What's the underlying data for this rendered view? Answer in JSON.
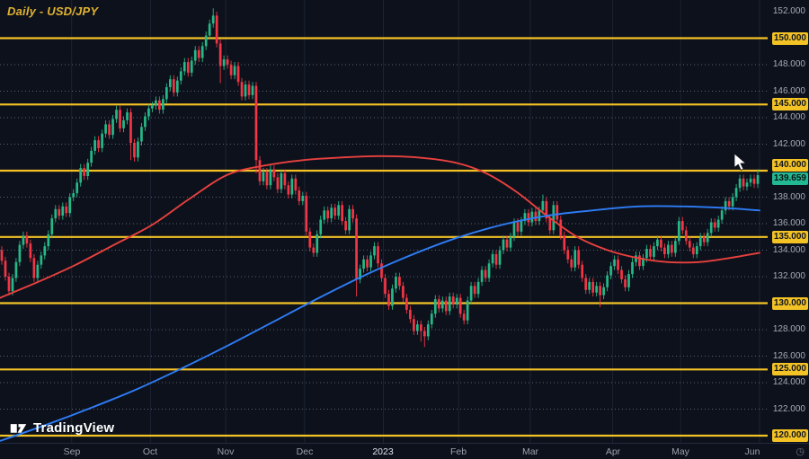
{
  "header": {
    "title": "Daily - USD/JPY"
  },
  "watermark": {
    "brand": "TradingView"
  },
  "colors": {
    "background": "#0d111c",
    "grid_vertical": "#1c2334",
    "dotted_line": "#9aa3b5",
    "level_line": "#f3c225",
    "level_chip_text": "#14171f",
    "candle_up": "#26b887",
    "candle_down": "#f23645",
    "ma_red": "#e8413e",
    "ma_blue": "#2e7df7",
    "tick_text": "#a6abb8",
    "month_text": "#9aa0ad",
    "month_text_emphasis": "#dfe3ec",
    "title_text": "#e0b231",
    "last_price_bg": "#23b894"
  },
  "y_axis": {
    "last_price_label": "139.659",
    "last_price_value": 139.659,
    "ticks": [
      {
        "v": 152,
        "label": "152.000",
        "level": false
      },
      {
        "v": 150,
        "label": "150.000",
        "level": true
      },
      {
        "v": 148,
        "label": "148.000",
        "level": false
      },
      {
        "v": 146,
        "label": "146.000",
        "level": false
      },
      {
        "v": 145,
        "label": "145.000",
        "level": true
      },
      {
        "v": 144,
        "label": "144.000",
        "level": false
      },
      {
        "v": 142,
        "label": "142.000",
        "level": false
      },
      {
        "v": 140,
        "label": "140.000",
        "level": true,
        "dy": -6
      },
      {
        "v": 138,
        "label": "138.000",
        "level": false
      },
      {
        "v": 136,
        "label": "136.000",
        "level": false
      },
      {
        "v": 135,
        "label": "135.000",
        "level": true
      },
      {
        "v": 134,
        "label": "134.000",
        "level": false
      },
      {
        "v": 132,
        "label": "132.000",
        "level": false
      },
      {
        "v": 130,
        "label": "130.000",
        "level": true
      },
      {
        "v": 128,
        "label": "128.000",
        "level": false
      },
      {
        "v": 126,
        "label": "126.000",
        "level": false
      },
      {
        "v": 125,
        "label": "125.000",
        "level": true
      },
      {
        "v": 124,
        "label": "124.000",
        "level": false
      },
      {
        "v": 122,
        "label": "122.000",
        "level": false
      },
      {
        "v": 120,
        "label": "120.000",
        "level": true
      }
    ]
  },
  "x_axis": {
    "months": [
      {
        "label": "Sep",
        "i": 20,
        "em": false
      },
      {
        "label": "Oct",
        "i": 42,
        "em": false
      },
      {
        "label": "Nov",
        "i": 63,
        "em": false
      },
      {
        "label": "Dec",
        "i": 85,
        "em": false
      },
      {
        "label": "2023",
        "i": 107,
        "em": true
      },
      {
        "label": "Feb",
        "i": 128,
        "em": false
      },
      {
        "label": "Mar",
        "i": 148,
        "em": false
      },
      {
        "label": "Apr",
        "i": 171,
        "em": false
      },
      {
        "label": "May",
        "i": 190,
        "em": false
      },
      {
        "label": "Jun",
        "i": 212,
        "em": false
      }
    ]
  },
  "chart_data": {
    "type": "candlestick",
    "title": "Daily - USD/JPY",
    "symbol": "USD/JPY",
    "timeframe": "Daily",
    "ylim": [
      119.4,
      152.9
    ],
    "x_range": [
      "Aug 2022",
      "Jun 2023"
    ],
    "grid": "dotted horizontal at even price levels, vertical at month starts",
    "key_levels": [
      120,
      125,
      130,
      135,
      140,
      145,
      150
    ],
    "dotted_levels": [
      122,
      124,
      126,
      128,
      132,
      134,
      136,
      138,
      142,
      144,
      146,
      148
    ],
    "last_close": 139.659,
    "first_open": 134.0,
    "default_wick": 0.3,
    "closes": [
      133.2,
      132.0,
      130.9,
      131.9,
      133.1,
      134.4,
      135.1,
      134.5,
      133.4,
      131.9,
      132.9,
      133.6,
      134.3,
      135.2,
      136.4,
      137.1,
      136.6,
      137.3,
      136.8,
      138.0,
      138.3,
      139.1,
      140.2,
      139.6,
      140.6,
      141.5,
      142.3,
      141.7,
      142.8,
      143.5,
      142.7,
      143.9,
      144.6,
      143.2,
      143.8,
      144.4,
      142.1,
      141.0,
      142.2,
      143.3,
      144.1,
      144.7,
      144.9,
      145.3,
      144.6,
      145.4,
      146.3,
      146.9,
      145.9,
      146.8,
      147.5,
      148.2,
      147.4,
      148.3,
      149.1,
      148.5,
      149.4,
      150.2,
      151.1,
      151.7,
      149.6,
      147.9,
      148.4,
      148.0,
      147.2,
      147.9,
      146.7,
      145.6,
      146.5,
      145.7,
      146.4,
      140.8,
      139.2,
      139.9,
      138.9,
      140.1,
      139.5,
      138.6,
      139.8,
      138.9,
      138.2,
      139.4,
      138.5,
      137.7,
      138.1,
      135.4,
      134.2,
      133.8,
      135.2,
      136.3,
      137.0,
      136.4,
      137.2,
      136.6,
      137.4,
      136.2,
      135.5,
      137.1,
      136.4,
      131.8,
      132.6,
      133.3,
      132.7,
      133.6,
      134.3,
      133.0,
      131.9,
      130.7,
      129.8,
      131.1,
      132.0,
      131.3,
      130.4,
      129.5,
      128.8,
      127.9,
      128.4,
      127.9,
      127.5,
      128.4,
      129.2,
      130.3,
      129.6,
      130.2,
      129.4,
      130.5,
      129.9,
      130.4,
      129.2,
      128.7,
      130.2,
      131.3,
      130.7,
      131.6,
      132.5,
      131.9,
      133.0,
      133.7,
      132.9,
      134.0,
      134.8,
      134.2,
      135.0,
      136.1,
      135.4,
      136.2,
      136.8,
      136.1,
      136.9,
      136.2,
      137.0,
      137.7,
      136.4,
      135.5,
      137.4,
      136.3,
      135.1,
      134.0,
      133.3,
      132.7,
      134.0,
      132.9,
      131.9,
      131.0,
      131.6,
      130.8,
      131.3,
      130.6,
      131.2,
      132.1,
      132.8,
      133.3,
      132.5,
      131.8,
      131.2,
      132.2,
      133.1,
      133.6,
      132.8,
      133.4,
      134.1,
      133.5,
      134.3,
      134.8,
      134.2,
      133.7,
      134.4,
      133.8,
      134.7,
      136.2,
      135.5,
      134.7,
      134.2,
      133.7,
      134.3,
      135.0,
      134.6,
      135.3,
      136.1,
      135.7,
      136.3,
      137.0,
      137.7,
      137.3,
      138.0,
      138.7,
      139.4,
      138.8,
      139.1,
      139.4,
      139.0,
      139.659
    ],
    "wick_overrides": {
      "36": [
        0,
        1.0
      ],
      "59": [
        0.25,
        0
      ],
      "61": [
        0,
        1.0
      ],
      "71": [
        0,
        0.7
      ],
      "99": [
        0,
        1.0
      ],
      "117": [
        0,
        0.5
      ],
      "118": [
        0,
        0.5
      ],
      "151": [
        0.2,
        0
      ],
      "167": [
        0,
        0.6
      ],
      "211": [
        0.15,
        0
      ]
    },
    "moving_averages": [
      {
        "name": "ma-red",
        "color_key": "ma_red",
        "points": [
          [
            0,
            130.4
          ],
          [
            0.05,
            131.6
          ],
          [
            0.1,
            132.9
          ],
          [
            0.15,
            134.4
          ],
          [
            0.2,
            135.9
          ],
          [
            0.25,
            137.9
          ],
          [
            0.3,
            139.7
          ],
          [
            0.35,
            140.4
          ],
          [
            0.4,
            140.8
          ],
          [
            0.45,
            141.0
          ],
          [
            0.5,
            141.1
          ],
          [
            0.55,
            141.0
          ],
          [
            0.6,
            140.6
          ],
          [
            0.64,
            139.8
          ],
          [
            0.68,
            138.4
          ],
          [
            0.72,
            136.6
          ],
          [
            0.76,
            135.0
          ],
          [
            0.8,
            134.0
          ],
          [
            0.84,
            133.4
          ],
          [
            0.88,
            133.1
          ],
          [
            0.92,
            133.1
          ],
          [
            0.96,
            133.4
          ],
          [
            1,
            133.8
          ]
        ]
      },
      {
        "name": "ma-blue",
        "color_key": "ma_blue",
        "points": [
          [
            0,
            119.6
          ],
          [
            0.06,
            120.8
          ],
          [
            0.12,
            122.1
          ],
          [
            0.18,
            123.5
          ],
          [
            0.24,
            125.1
          ],
          [
            0.3,
            126.8
          ],
          [
            0.36,
            128.6
          ],
          [
            0.42,
            130.4
          ],
          [
            0.48,
            132.1
          ],
          [
            0.54,
            133.6
          ],
          [
            0.6,
            134.9
          ],
          [
            0.66,
            135.9
          ],
          [
            0.72,
            136.6
          ],
          [
            0.78,
            137.0
          ],
          [
            0.84,
            137.3
          ],
          [
            0.9,
            137.3
          ],
          [
            0.95,
            137.2
          ],
          [
            1,
            137.0
          ]
        ]
      }
    ]
  }
}
